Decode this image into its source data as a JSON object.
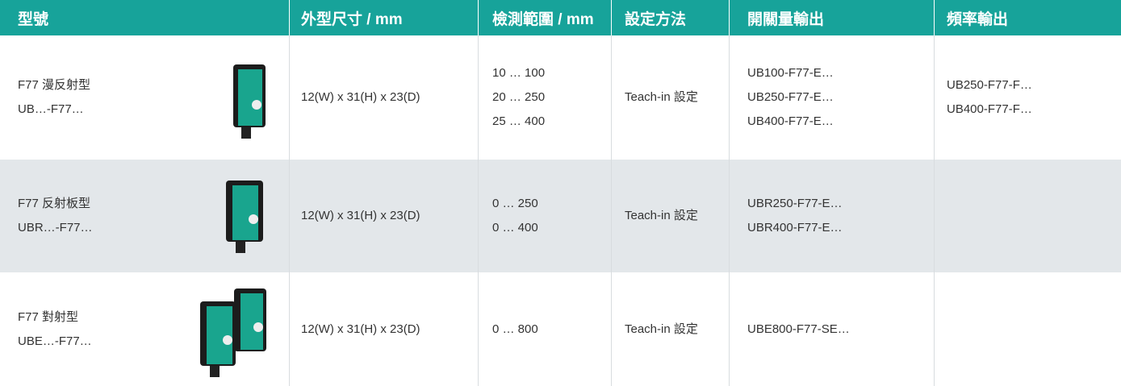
{
  "table": {
    "headers": [
      "型號",
      "外型尺寸 / mm",
      "檢測範圍 / mm",
      "設定方法",
      "開關量輸出",
      "頻率輸出"
    ],
    "rows": [
      {
        "model": [
          "F77 漫反射型",
          "UB…-F77…"
        ],
        "size": "12(W) x 31(H) x 23(D)",
        "range": [
          "10 … 100",
          "20 … 250",
          "25 … 400"
        ],
        "setting": "Teach-in 設定",
        "switching": [
          "UB100-F77-E…",
          "UB250-F77-E…",
          "UB400-F77-E…"
        ],
        "frequency": [
          "UB250-F77-F…",
          "UB400-F77-F…"
        ]
      },
      {
        "model": [
          "F77 反射板型",
          "UBR…-F77…"
        ],
        "size": "12(W) x 31(H) x 23(D)",
        "range": [
          "0 … 250",
          "0 … 400"
        ],
        "setting": "Teach-in 設定",
        "switching": [
          "UBR250-F77-E…",
          "UBR400-F77-E…"
        ],
        "frequency": []
      },
      {
        "model": [
          "F77 對射型",
          "UBE…-F77…"
        ],
        "size": "12(W) x 31(H) x 23(D)",
        "range": [
          "0 … 800"
        ],
        "setting": "Teach-in 設定",
        "switching": [
          "UBE800-F77-SE…"
        ],
        "frequency": []
      }
    ]
  }
}
